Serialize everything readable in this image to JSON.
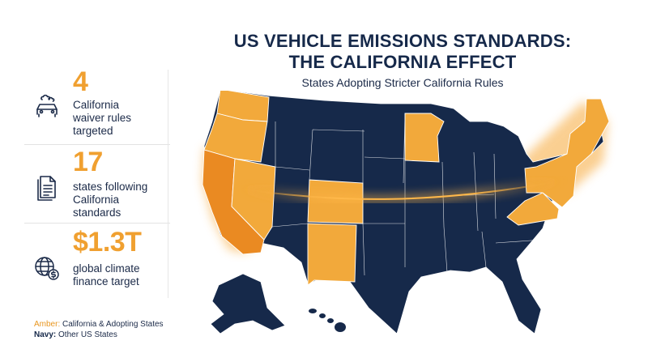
{
  "title_line1": "US VEHICLE EMISSIONS STANDARDS:",
  "title_line2": "THE CALIFORNIA EFFECT",
  "subtitle": "States Adopting Stricter California Rules",
  "colors": {
    "amber": "#f2a93b",
    "navy": "#16294a",
    "accent_text": "#f0a030"
  },
  "stats": [
    {
      "value": "4",
      "label_lines": [
        "California",
        "waiver rules",
        "targeted"
      ],
      "icon": "car-emissions-icon"
    },
    {
      "value": "17",
      "label_lines": [
        "states following",
        "California",
        "standards"
      ],
      "icon": "document-icon"
    },
    {
      "value": "$1.3T",
      "label_lines": [
        "global climate",
        "finance target"
      ],
      "icon": "globe-dollar-icon"
    }
  ],
  "legend": {
    "amber_key": "Amber:",
    "amber_text": " California & Adopting States",
    "navy_key": "Navy:",
    "navy_text": " Other US States"
  }
}
